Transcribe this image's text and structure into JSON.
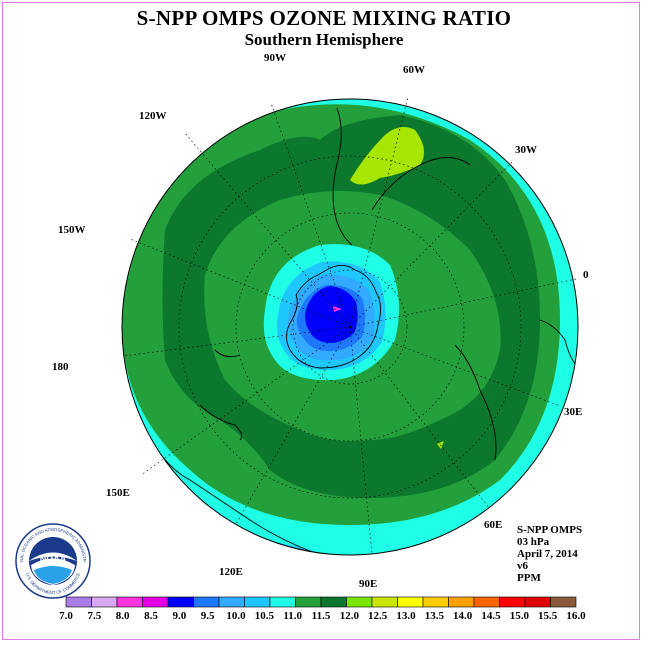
{
  "title": "S-NPP OMPS OZONE MIXING RATIO",
  "subtitle": "Southern Hemisphere",
  "logo": {
    "text": "NOAA",
    "ring_text": "NATIONAL OCEANIC AND ATMOSPHERIC ADMINISTRATION",
    "ring_text_bottom": "U.S. DEPARTMENT OF COMMERCE"
  },
  "longitude_labels": {
    "w90": "90W",
    "w60": "60W",
    "w30": "30W",
    "e0": "0",
    "e30": "30E",
    "e60": "60E",
    "e90": "90E",
    "e120": "120E",
    "e150": "150E",
    "d180": "180",
    "w150": "150W",
    "w120": "120W"
  },
  "info": {
    "instrument": "S-NPP OMPS",
    "level": "03 hPa",
    "date": "April 7, 2014",
    "version": "v6",
    "units": "PPM"
  },
  "colorbar": {
    "ticks": [
      "7.0",
      "7.5",
      "8.0",
      "8.5",
      "9.0",
      "9.5",
      "10.0",
      "10.5",
      "11.0",
      "11.5",
      "12.0",
      "12.5",
      "13.0",
      "13.5",
      "14.0",
      "14.5",
      "15.0",
      "15.5",
      "16.0"
    ],
    "colors": [
      "#a97de8",
      "#d9a6f0",
      "#ff33dd",
      "#e500e5",
      "#0000ff",
      "#1e78ff",
      "#32aaff",
      "#1ec8ff",
      "#1effe5",
      "#23a03c",
      "#0b782d",
      "#78e600",
      "#c8e600",
      "#ffff00",
      "#ffcc00",
      "#ffa000",
      "#ff6400",
      "#ff0000",
      "#e10000",
      "#8b5a3c"
    ]
  },
  "colors": {
    "frame": "#e37ae3",
    "level_11": "#1effe5",
    "level_11_5": "#23a03c",
    "level_12": "#0b782d",
    "level_12_5": "#a6e600"
  }
}
